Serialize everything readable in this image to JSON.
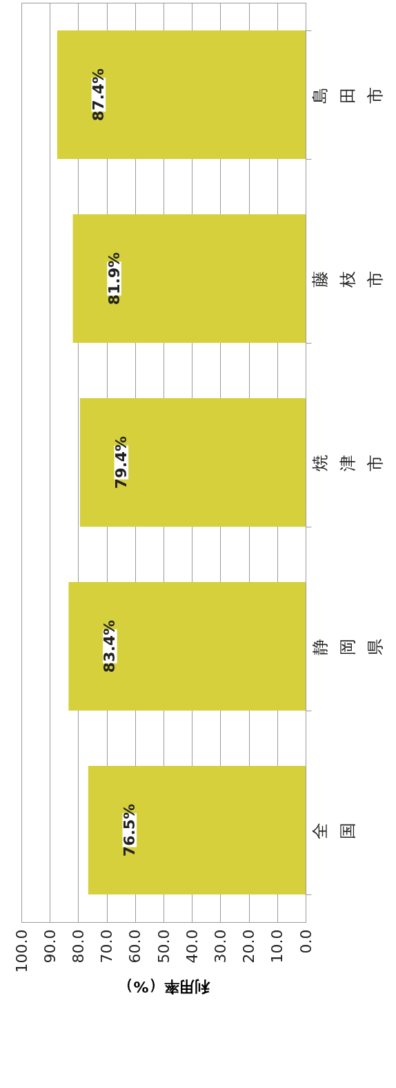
{
  "chart_data": {
    "type": "bar",
    "orientation": "horizontal",
    "xlabel": "利用率（%）",
    "categories": [
      "島田市",
      "藤枝市",
      "焼津市",
      "静岡県",
      "全国"
    ],
    "values": [
      87.4,
      81.9,
      79.4,
      83.4,
      76.5
    ],
    "value_labels": [
      "87.4%",
      "81.9%",
      "79.4%",
      "83.4%",
      "76.5%"
    ],
    "color": "#d5d03c",
    "xlim": [
      100,
      0
    ],
    "xticks": [
      {
        "value": 100,
        "label": "100.0"
      },
      {
        "value": 90,
        "label": "90.0"
      },
      {
        "value": 80,
        "label": "80.0"
      },
      {
        "value": 70,
        "label": "70.0"
      },
      {
        "value": 60,
        "label": "60.0"
      },
      {
        "value": 50,
        "label": "50.0"
      },
      {
        "value": 40,
        "label": "40.0"
      },
      {
        "value": 30,
        "label": "30.0"
      },
      {
        "value": 20,
        "label": "20.0"
      },
      {
        "value": 10,
        "label": "10.0"
      },
      {
        "value": 0,
        "label": "0.0"
      }
    ],
    "grid": true
  }
}
